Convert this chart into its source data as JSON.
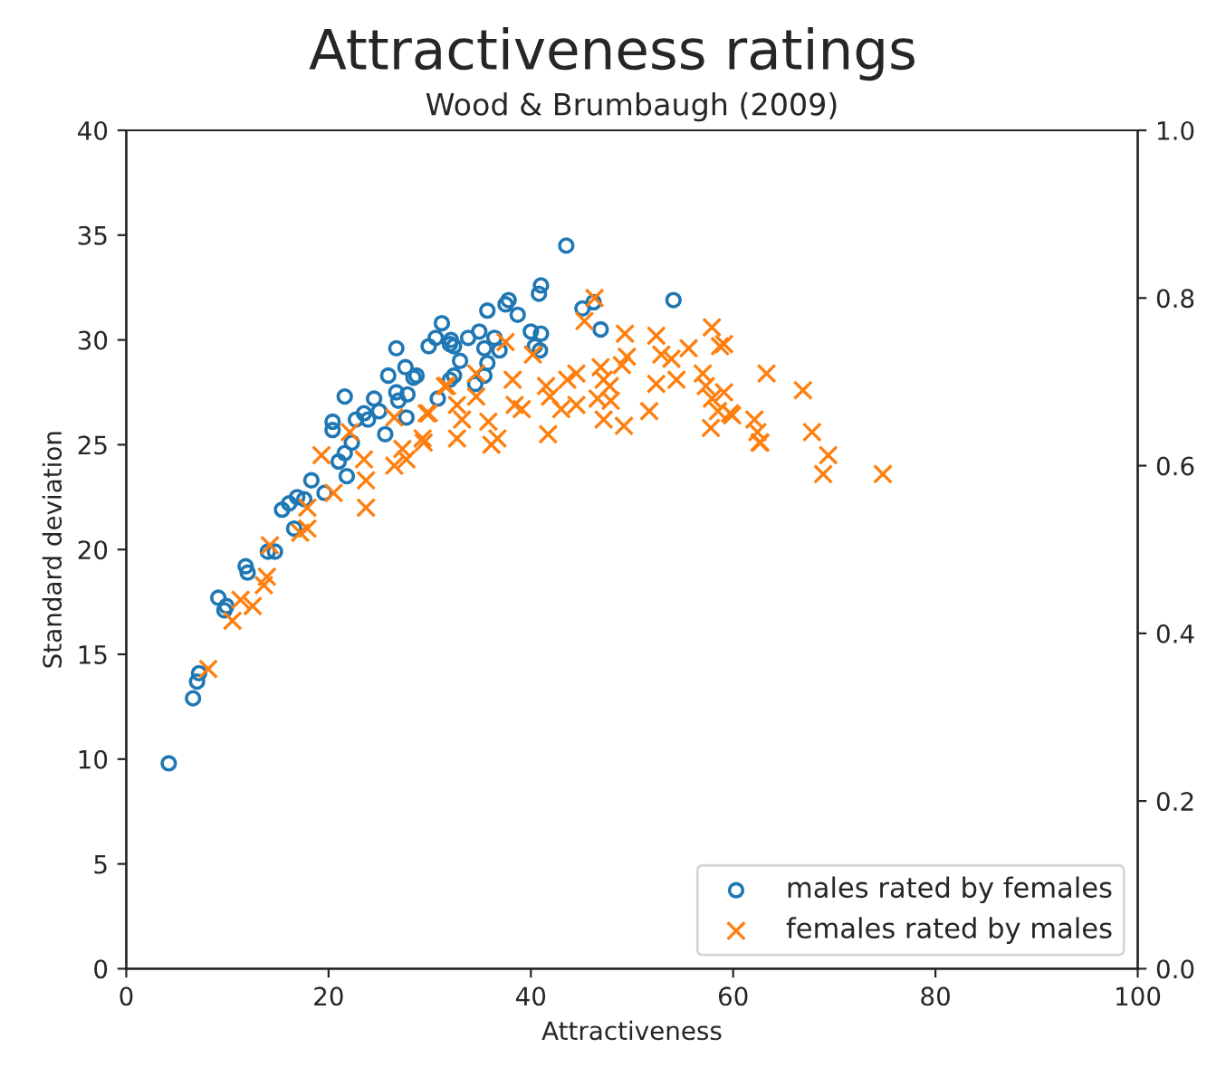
{
  "chart_data": {
    "type": "scatter",
    "title": "Attractiveness ratings",
    "subtitle": "Wood & Brumbaugh (2009)",
    "xlabel": "Attractiveness",
    "ylabel": "Standard deviation",
    "xlim": [
      0,
      100
    ],
    "xticks": [
      0,
      20,
      40,
      60,
      80,
      100
    ],
    "ylim": [
      0,
      40
    ],
    "yticks": [
      0,
      5,
      10,
      15,
      20,
      25,
      30,
      35,
      40
    ],
    "y2lim": [
      0,
      1
    ],
    "y2ticks": [
      {
        "value": 0,
        "label": "0.0"
      },
      {
        "value": 0.2,
        "label": "0.2"
      },
      {
        "value": 0.4,
        "label": "0.4"
      },
      {
        "value": 0.6,
        "label": "0.6"
      },
      {
        "value": 0.8,
        "label": "0.8"
      },
      {
        "value": 1,
        "label": "1.0"
      }
    ],
    "grid": false,
    "legend": "bottom right",
    "series": [
      {
        "name": "males rated by females",
        "color": "#1f77b4",
        "marker": "circle",
        "x": [
          4.2,
          6.6,
          7.0,
          7.2,
          9.1,
          9.7,
          9.9,
          11.8,
          12.0,
          14.0,
          14.7,
          16.6,
          15.4,
          16.1,
          16.9,
          17.6,
          18.3,
          19.6,
          20.4,
          20.4,
          21.6,
          21.0,
          21.6,
          21.8,
          22.3,
          22.7,
          23.5,
          23.9,
          24.5,
          25.0,
          25.6,
          25.9,
          26.7,
          26.7,
          26.9,
          27.6,
          27.8,
          28.4,
          27.7,
          29.9,
          30.6,
          31.2,
          32.0,
          30.8,
          43.5,
          41.0,
          40.8,
          37.8,
          37.5,
          35.7,
          38.7,
          54.1,
          46.2,
          45.1,
          46.9,
          32.1,
          32.4,
          33.8,
          34.9,
          36.4,
          35.4,
          36.9,
          40.0,
          41.0,
          40.4,
          40.9,
          33.0,
          35.7,
          32.4,
          32.0,
          34.5,
          35.4,
          28.7
        ],
        "values": [
          9.8,
          12.9,
          13.7,
          14.1,
          17.7,
          17.1,
          17.3,
          19.2,
          18.9,
          19.9,
          19.9,
          21.0,
          21.9,
          22.2,
          22.5,
          22.4,
          23.3,
          22.7,
          26.1,
          25.7,
          27.3,
          24.2,
          24.6,
          23.5,
          25.1,
          26.2,
          26.5,
          26.2,
          27.2,
          26.6,
          25.5,
          28.3,
          29.6,
          27.5,
          27.1,
          28.7,
          27.4,
          28.2,
          26.3,
          29.7,
          30.1,
          30.8,
          29.8,
          27.2,
          34.5,
          32.6,
          32.2,
          31.9,
          31.7,
          31.4,
          31.2,
          31.9,
          31.8,
          31.5,
          30.5,
          30.0,
          29.7,
          30.1,
          30.4,
          30.1,
          29.6,
          29.5,
          30.4,
          30.3,
          29.7,
          29.5,
          29.0,
          28.9,
          28.3,
          28.1,
          27.9,
          28.3,
          28.3
        ]
      },
      {
        "name": "females rated by males",
        "color": "#ff7f0e",
        "marker": "cross",
        "x": [
          8.1,
          10.5,
          11.3,
          12.5,
          13.6,
          13.9,
          14.2,
          17.2,
          17.9,
          17.9,
          20.5,
          19.3,
          22.1,
          23.5,
          23.7,
          23.7,
          26.5,
          27.3,
          27.7,
          29.3,
          29.7,
          26.5,
          31.5,
          46.3,
          45.3,
          49.3,
          57.9,
          52.4,
          58.7,
          37.5,
          40.2,
          49.5,
          49.0,
          55.6,
          52.9,
          53.9,
          46.9,
          44.5,
          34.6,
          38.2,
          41.5,
          43.6,
          47.2,
          47.8,
          52.4,
          54.4,
          57.0,
          57.3,
          63.3,
          31.7,
          34.6,
          29.9,
          32.7,
          33.2,
          38.4,
          39.1,
          41.9,
          43.0,
          44.5,
          46.6,
          47.9,
          47.2,
          51.7,
          57.9,
          58.5,
          59.7,
          57.8,
          62.1,
          62.4,
          35.8,
          36.7,
          36.1,
          32.7,
          29.4,
          41.7,
          49.2,
          62.7,
          66.9,
          67.8,
          69.4,
          68.9,
          74.8,
          62.6,
          59.9,
          59.1,
          59.1
        ],
        "values": [
          14.3,
          16.6,
          17.6,
          17.3,
          18.3,
          18.7,
          20.2,
          20.8,
          21.0,
          22.0,
          22.7,
          24.5,
          25.6,
          24.3,
          23.3,
          22.0,
          24.0,
          24.8,
          24.3,
          25.3,
          26.5,
          26.3,
          27.8,
          32.0,
          30.9,
          30.3,
          30.6,
          30.2,
          29.7,
          29.9,
          29.3,
          29.2,
          28.8,
          29.6,
          29.3,
          29.1,
          28.7,
          28.4,
          28.4,
          28.1,
          27.8,
          28.1,
          28.1,
          27.8,
          27.9,
          28.1,
          28.4,
          27.8,
          28.4,
          27.8,
          27.3,
          26.5,
          26.9,
          26.2,
          26.9,
          26.7,
          27.3,
          26.7,
          26.9,
          27.2,
          27.1,
          26.2,
          26.6,
          27.2,
          26.6,
          26.5,
          25.8,
          26.2,
          25.6,
          26.1,
          25.3,
          25.0,
          25.3,
          25.1,
          25.5,
          25.9,
          25.1,
          27.6,
          25.6,
          24.5,
          23.6,
          23.6,
          25.1,
          26.4,
          27.5,
          29.8
        ]
      }
    ]
  }
}
